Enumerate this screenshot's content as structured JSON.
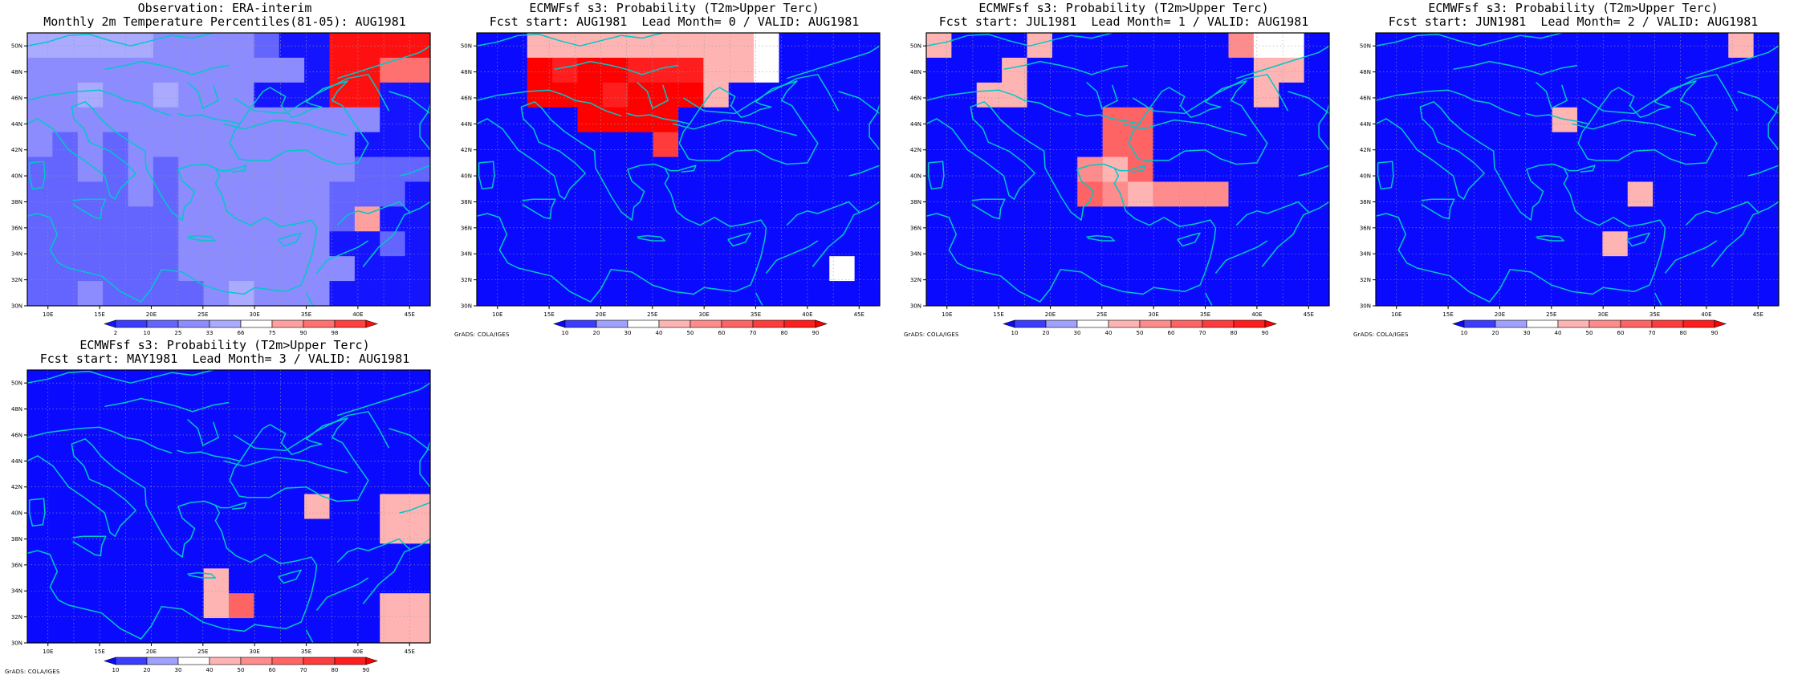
{
  "colors": {
    "obs": [
      "#1414ff",
      "#3c3cff",
      "#6464ff",
      "#8c8cff",
      "#aaaaff",
      "#ffffff",
      "#ffa0a0",
      "#ff7070",
      "#ff4040",
      "#ff1010"
    ],
    "prob": [
      "#0a0aff",
      "#3c3cff",
      "#a0a0ff",
      "#ffffff",
      "#ffb4b4",
      "#ff8c8c",
      "#ff6464",
      "#ff3c3c",
      "#ff1e1e",
      "#ff0000"
    ],
    "coast": "#00c8c8"
  },
  "chart_data": [
    {
      "type": "heatmap",
      "title_line1": "Observation: ERA-interim",
      "title_line2": "Monthly 2m Temperature Percentiles(81-05): AUG1981",
      "credit": "",
      "scale": "obs",
      "legend_ticks": [
        "2",
        "10",
        "25",
        "33",
        "66",
        "75",
        "90",
        "98"
      ],
      "xticks": [
        "10E",
        "15E",
        "20E",
        "25E",
        "30E",
        "35E",
        "40E",
        "45E"
      ],
      "yticks": [
        "30N",
        "32N",
        "34N",
        "36N",
        "38N",
        "40N",
        "42N",
        "44N",
        "46N",
        "48N",
        "50N"
      ],
      "xlim": [
        8,
        47
      ],
      "ylim": [
        30,
        51
      ],
      "grid": [
        "4444433332009999",
        "3333333333309977",
        "3343343330009900",
        "3333333333333300",
        "3232333333333000",
        "2232323333333222",
        "2222323333332220",
        "2222223333332600",
        "2222223333330020",
        "2222223333333000",
        "2232222343330000"
      ]
    },
    {
      "type": "heatmap",
      "title_line1": "ECMWFsf s3: Probability (T2m>Upper Terc)",
      "title_line2": "Fcst start: AUG1981  Lead Month= 0 / VALID: AUG1981",
      "credit": "GrADS: COLA/IGES",
      "scale": "prob",
      "legend_ticks": [
        "10",
        "20",
        "30",
        "40",
        "50",
        "60",
        "70",
        "80",
        "90"
      ],
      "xticks": [
        "10E",
        "15E",
        "20E",
        "25E",
        "30E",
        "35E",
        "40E",
        "45E"
      ],
      "yticks": [
        "30N",
        "32N",
        "34N",
        "36N",
        "38N",
        "40N",
        "42N",
        "44N",
        "46N",
        "48N",
        "50N"
      ],
      "xlim": [
        8,
        47
      ],
      "ylim": [
        30,
        51
      ],
      "grid": [
        "0044444444430000",
        "0098998884430000",
        "0099989994000000",
        "0000999900000000",
        "0000000700000000",
        "0000000000000000",
        "0000000000000000",
        "0000000000000000",
        "0000000000000000",
        "0000000000000030",
        "0000000000000000"
      ]
    },
    {
      "type": "heatmap",
      "title_line1": "ECMWFsf s3: Probability (T2m>Upper Terc)",
      "title_line2": "Fcst start: JUL1981  Lead Month= 1 / VALID: AUG1981",
      "credit": "GrADS: COLA/IGES",
      "scale": "prob",
      "legend_ticks": [
        "10",
        "20",
        "30",
        "40",
        "50",
        "60",
        "70",
        "80",
        "90"
      ],
      "xticks": [
        "10E",
        "15E",
        "20E",
        "25E",
        "30E",
        "35E",
        "40E",
        "45E"
      ],
      "yticks": [
        "30N",
        "32N",
        "34N",
        "36N",
        "38N",
        "40N",
        "42N",
        "44N",
        "46N",
        "48N",
        "50N"
      ],
      "xlim": [
        8,
        47
      ],
      "ylim": [
        30,
        51
      ],
      "grid": [
        "4000400000005330",
        "0004000000000440",
        "0044000000000400",
        "0000000660000000",
        "0000000660000000",
        "0000005460000000",
        "0000006545550000",
        "0000000000000000",
        "0000000000000000",
        "0000000000000000",
        "0000000000000000"
      ]
    },
    {
      "type": "heatmap",
      "title_line1": "ECMWFsf s3: Probability (T2m>Upper Terc)",
      "title_line2": "Fcst start: JUN1981  Lead Month= 2 / VALID: AUG1981",
      "credit": "GrADS: COLA/IGES",
      "scale": "prob",
      "legend_ticks": [
        "10",
        "20",
        "30",
        "40",
        "50",
        "60",
        "70",
        "80",
        "90"
      ],
      "xticks": [
        "10E",
        "15E",
        "20E",
        "25E",
        "30E",
        "35E",
        "40E",
        "45E"
      ],
      "yticks": [
        "30N",
        "32N",
        "34N",
        "36N",
        "38N",
        "40N",
        "42N",
        "44N",
        "46N",
        "48N",
        "50N"
      ],
      "xlim": [
        8,
        47
      ],
      "ylim": [
        30,
        51
      ],
      "grid": [
        "0000000000000040",
        "0000000000000000",
        "0000000000000000",
        "0000000400000000",
        "0000000000000000",
        "0000000000000000",
        "0000000000400000",
        "0000000000000000",
        "0000000004000000",
        "0000000000000000",
        "0000000000000000"
      ]
    },
    {
      "type": "heatmap",
      "title_line1": "ECMWFsf s3: Probability (T2m>Upper Terc)",
      "title_line2": "Fcst start: MAY1981  Lead Month= 3 / VALID: AUG1981",
      "credit": "GrADS: COLA/IGES",
      "scale": "prob",
      "legend_ticks": [
        "10",
        "20",
        "30",
        "40",
        "50",
        "60",
        "70",
        "80",
        "90"
      ],
      "xticks": [
        "10E",
        "15E",
        "20E",
        "25E",
        "30E",
        "35E",
        "40E",
        "45E"
      ],
      "yticks": [
        "30N",
        "32N",
        "34N",
        "36N",
        "38N",
        "40N",
        "42N",
        "44N",
        "46N",
        "48N",
        "50N"
      ],
      "xlim": [
        8,
        47
      ],
      "ylim": [
        30,
        51
      ],
      "grid": [
        "0000000000000000",
        "0000000000000000",
        "0000000000000000",
        "0000000000000000",
        "0000000000000000",
        "0000000000040044",
        "0000000000000044",
        "0000000000000000",
        "0000000400000000",
        "0000000460000044",
        "0000000000000044"
      ]
    }
  ]
}
